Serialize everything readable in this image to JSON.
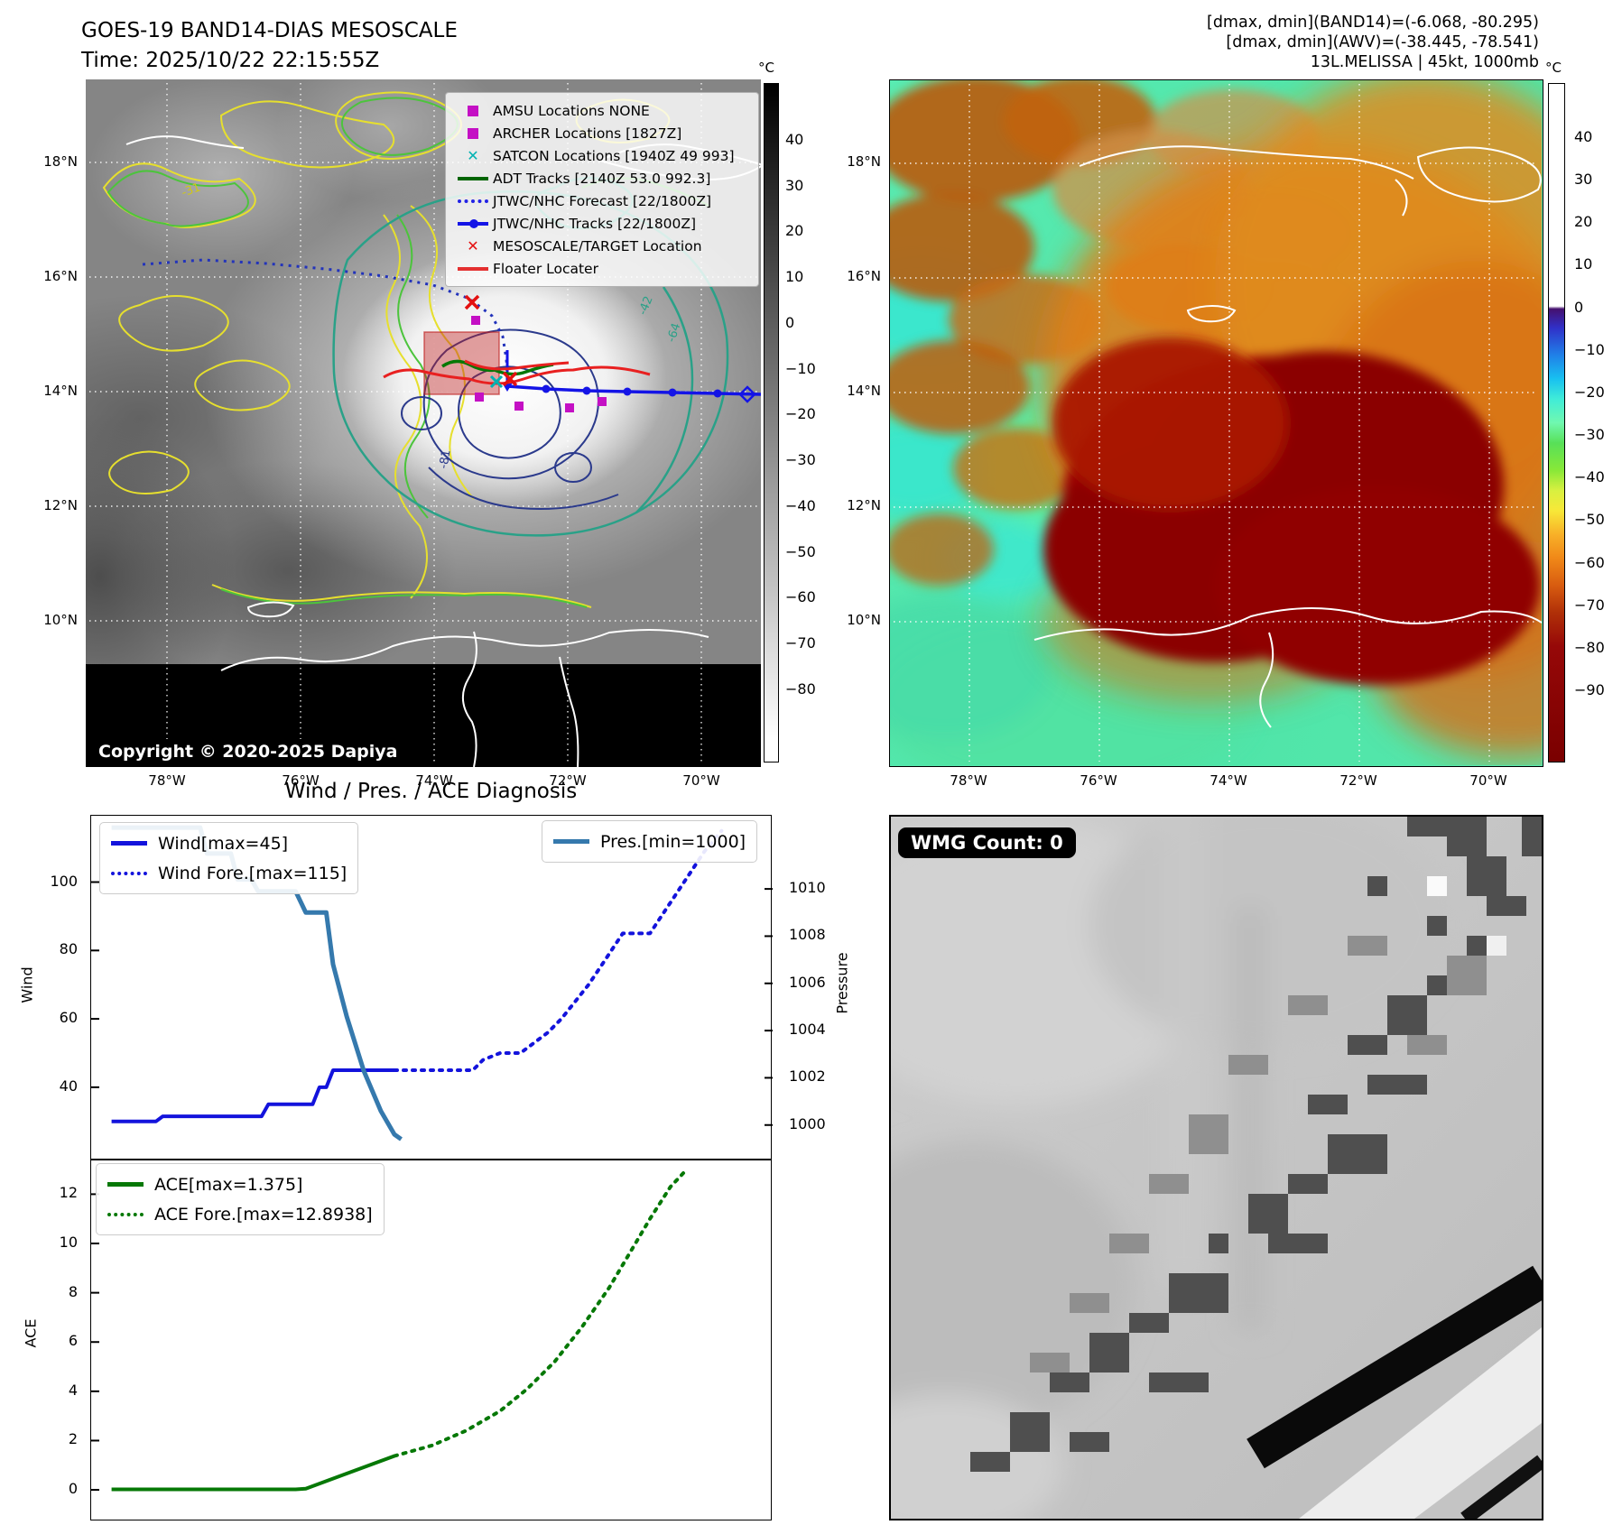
{
  "header": {
    "title": "GOES-19 BAND14-DIAS MESOSCALE",
    "time": "Time: 2025/10/22 22:15:55Z",
    "stats_band14": "[dmax, dmin](BAND14)=(-6.068, -80.295)",
    "stats_awv": "[dmax, dmin](AWV)=(-38.445, -78.541)",
    "storm": "13L.MELISSA | 45kt, 1000mb"
  },
  "left_map": {
    "legend": [
      {
        "label": "AMSU Locations NONE"
      },
      {
        "label": "ARCHER Locations [1827Z]"
      },
      {
        "label": "SATCON Locations [1940Z 49 993]"
      },
      {
        "label": "ADT Tracks [2140Z 53.0 992.3]"
      },
      {
        "label": "JTWC/NHC Forecast [22/1800Z]"
      },
      {
        "label": "JTWC/NHC Tracks [22/1800Z]"
      },
      {
        "label": "MESOSCALE/TARGET Location"
      },
      {
        "label": "Floater Locater"
      }
    ],
    "contour_labels": [
      "-31",
      "-64",
      "-81",
      "-42"
    ],
    "copyright": "Copyright © 2020-2025 Dapiya",
    "colorbar_unit": "°C",
    "colorbar_ticks": [
      "40",
      "30",
      "20",
      "10",
      "0",
      "−10",
      "−20",
      "−30",
      "−40",
      "−50",
      "−60",
      "−70",
      "−80"
    ]
  },
  "right_map": {
    "colorbar_unit": "°C",
    "colorbar_ticks": [
      "40",
      "30",
      "20",
      "10",
      "0",
      "−10",
      "−20",
      "−30",
      "−40",
      "−50",
      "−60",
      "−70",
      "−80",
      "−90"
    ]
  },
  "geo": {
    "lat_ticks": [
      "18°N",
      "16°N",
      "14°N",
      "12°N",
      "10°N"
    ],
    "lon_ticks": [
      "78°W",
      "76°W",
      "74°W",
      "72°W",
      "70°W"
    ]
  },
  "charts_title": "Wind / Pres. / ACE Diagnosis",
  "wmg": {
    "count_label": "WMG Count: 0"
  },
  "chart_data": [
    {
      "id": "wind_pres",
      "type": "line",
      "title": "Wind / Pres. / ACE Diagnosis",
      "ylabel_left": "Wind",
      "ylabel_right": "Pressure",
      "ylim_left": [
        18.6,
        119.4
      ],
      "ylim_right": [
        998.5,
        1013.1
      ],
      "yticks_left": [
        40,
        60,
        80,
        100
      ],
      "yticks_right": [
        1000,
        1002,
        1004,
        1006,
        1008,
        1010
      ],
      "series": [
        {
          "name": "Wind[max=45]",
          "color": "#1313dc",
          "style": "solid",
          "axis": "left",
          "width": 4,
          "points": [
            [
              0.03,
              30
            ],
            [
              0.095,
              30
            ],
            [
              0.105,
              31.5
            ],
            [
              0.25,
              31.5
            ],
            [
              0.26,
              35
            ],
            [
              0.325,
              35
            ],
            [
              0.335,
              40
            ],
            [
              0.345,
              40
            ],
            [
              0.355,
              45
            ],
            [
              0.445,
              45
            ]
          ]
        },
        {
          "name": "Wind Fore.[max=115]",
          "color": "#1313dc",
          "style": "dotted",
          "axis": "left",
          "width": 4,
          "points": [
            [
              0.445,
              45
            ],
            [
              0.56,
              45
            ],
            [
              0.575,
              48
            ],
            [
              0.6,
              50
            ],
            [
              0.63,
              50
            ],
            [
              0.65,
              53
            ],
            [
              0.67,
              56
            ],
            [
              0.69,
              60
            ],
            [
              0.71,
              65
            ],
            [
              0.73,
              70
            ],
            [
              0.75,
              76
            ],
            [
              0.77,
              82
            ],
            [
              0.78,
              85
            ],
            [
              0.82,
              85
            ],
            [
              0.84,
              91
            ],
            [
              0.86,
              97
            ],
            [
              0.88,
              103
            ],
            [
              0.9,
              109
            ],
            [
              0.925,
              115
            ]
          ]
        },
        {
          "name": "Pres.[min=1000]",
          "color": "#3579ad",
          "style": "solid",
          "axis": "right",
          "width": 5,
          "points": [
            [
              0.03,
              1012.6
            ],
            [
              0.16,
              1012.6
            ],
            [
              0.17,
              1011.5
            ],
            [
              0.205,
              1011.5
            ],
            [
              0.215,
              1010.4
            ],
            [
              0.235,
              1010.4
            ],
            [
              0.245,
              1009.9
            ],
            [
              0.3,
              1009.9
            ],
            [
              0.315,
              1009.0
            ],
            [
              0.345,
              1009.0
            ],
            [
              0.355,
              1006.8
            ],
            [
              0.375,
              1004.6
            ],
            [
              0.4,
              1002.3
            ],
            [
              0.425,
              1000.6
            ],
            [
              0.445,
              999.6
            ],
            [
              0.455,
              999.4
            ]
          ]
        }
      ]
    },
    {
      "id": "ace",
      "type": "line",
      "ylabel_left": "ACE",
      "ylim_left": [
        -1.28,
        13.37
      ],
      "yticks_left": [
        0,
        2,
        4,
        6,
        8,
        10,
        12
      ],
      "series": [
        {
          "name": "ACE[max=1.375]",
          "color": "#067806",
          "style": "solid",
          "axis": "left",
          "width": 4,
          "points": [
            [
              0.03,
              0.02
            ],
            [
              0.3,
              0.02
            ],
            [
              0.315,
              0.05
            ],
            [
              0.445,
              1.375
            ]
          ]
        },
        {
          "name": "ACE Fore.[max=12.8938]",
          "color": "#067806",
          "style": "dotted",
          "axis": "left",
          "width": 4,
          "points": [
            [
              0.445,
              1.375
            ],
            [
              0.5,
              1.8
            ],
            [
              0.55,
              2.4
            ],
            [
              0.6,
              3.2
            ],
            [
              0.64,
              4.1
            ],
            [
              0.68,
              5.2
            ],
            [
              0.72,
              6.6
            ],
            [
              0.76,
              8.2
            ],
            [
              0.79,
              9.6
            ],
            [
              0.82,
              11.0
            ],
            [
              0.85,
              12.3
            ],
            [
              0.87,
              12.89
            ]
          ]
        }
      ]
    }
  ]
}
